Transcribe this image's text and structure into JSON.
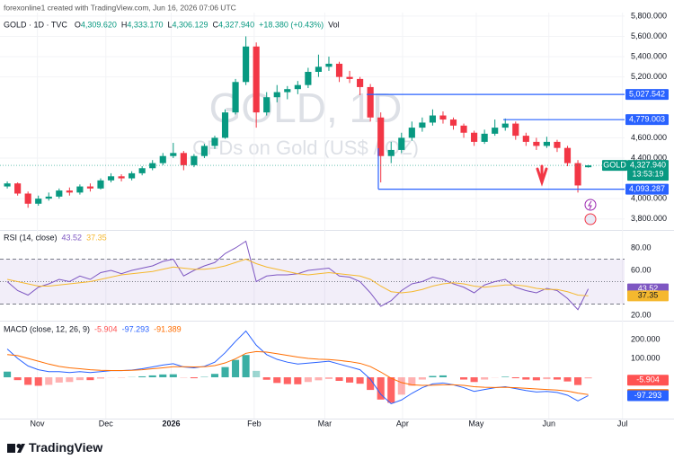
{
  "header": {
    "credit": "forexonline1 created with TradingView.com, Jun 16, 2026 07:06 UTC",
    "symbol": "GOLD · 1D · TVC",
    "quote": [
      {
        "key": "O",
        "label": "4,309.620"
      },
      {
        "key": "H",
        "label": "4,333.170"
      },
      {
        "key": "L",
        "label": "4,306.129"
      },
      {
        "key": "C",
        "label": "4,327.940"
      }
    ],
    "change": "+18.380 (+0.43%)",
    "volume": "Vol"
  },
  "chart_data": {
    "type": "candlestick",
    "title": "GOLD, 1D",
    "subtitle": "CFDs on Gold (US$ / OZ)",
    "up_color": "#089981",
    "down_color": "#f23645",
    "xlim": [
      -0.7,
      59.5
    ],
    "xticks": [
      {
        "value": 2.9,
        "label": "Nov"
      },
      {
        "value": 9.5,
        "label": "Dec"
      },
      {
        "value": 15.8,
        "label": "2026"
      },
      {
        "value": 23.8,
        "label": "Feb"
      },
      {
        "value": 30.6,
        "label": "Mar"
      },
      {
        "value": 38.1,
        "label": "Apr"
      },
      {
        "value": 45.2,
        "label": "May"
      },
      {
        "value": 52.2,
        "label": "Jun"
      },
      {
        "value": 59.3,
        "label": "Jul"
      }
    ],
    "ylim": [
      3700,
      5870
    ],
    "yticks": [
      {
        "value": 5800,
        "label": "5,800.000"
      },
      {
        "value": 5600,
        "label": "5,600.000"
      },
      {
        "value": 5400,
        "label": "5,400.000"
      },
      {
        "value": 5200,
        "label": "5,200.000"
      },
      {
        "value": 4600,
        "label": "4,600.000"
      },
      {
        "value": 4400,
        "label": "4,400.000"
      },
      {
        "value": 4000,
        "label": "4,000.000"
      },
      {
        "value": 3800,
        "label": "3,800.000"
      }
    ],
    "candles": [
      [
        4120,
        4170,
        4100,
        4150
      ],
      [
        4150,
        4160,
        4030,
        4050
      ],
      [
        4050,
        4070,
        3910,
        3950
      ],
      [
        3950,
        4030,
        3930,
        4000
      ],
      [
        4000,
        4060,
        3980,
        4020
      ],
      [
        4020,
        4100,
        4000,
        4080
      ],
      [
        4080,
        4110,
        4030,
        4060
      ],
      [
        4060,
        4140,
        4040,
        4120
      ],
      [
        4120,
        4150,
        4070,
        4100
      ],
      [
        4100,
        4200,
        4090,
        4180
      ],
      [
        4180,
        4250,
        4160,
        4220
      ],
      [
        4220,
        4240,
        4170,
        4200
      ],
      [
        4200,
        4270,
        4180,
        4250
      ],
      [
        4250,
        4320,
        4230,
        4300
      ],
      [
        4300,
        4380,
        4280,
        4350
      ],
      [
        4350,
        4450,
        4330,
        4420
      ],
      [
        4420,
        4550,
        4400,
        4450
      ],
      [
        4450,
        4470,
        4280,
        4330
      ],
      [
        4330,
        4440,
        4310,
        4420
      ],
      [
        4420,
        4540,
        4400,
        4520
      ],
      [
        4520,
        4620,
        4490,
        4600
      ],
      [
        4600,
        4880,
        4590,
        4850
      ],
      [
        4850,
        5180,
        4830,
        5150
      ],
      [
        5150,
        5600,
        5120,
        5500
      ],
      [
        5500,
        5540,
        4700,
        4850
      ],
      [
        4850,
        5050,
        4820,
        5000
      ],
      [
        5000,
        5120,
        4950,
        5050
      ],
      [
        5050,
        5110,
        4980,
        5080
      ],
      [
        5080,
        5160,
        5030,
        5120
      ],
      [
        5120,
        5290,
        5090,
        5250
      ],
      [
        5250,
        5420,
        5200,
        5300
      ],
      [
        5300,
        5400,
        5260,
        5330
      ],
      [
        5330,
        5350,
        5150,
        5200
      ],
      [
        5200,
        5260,
        5140,
        5180
      ],
      [
        5180,
        5200,
        5020,
        5100
      ],
      [
        5100,
        5130,
        4760,
        4800
      ],
      [
        4800,
        4850,
        4160,
        4420
      ],
      [
        4420,
        4560,
        4350,
        4480
      ],
      [
        4480,
        4650,
        4450,
        4600
      ],
      [
        4600,
        4760,
        4570,
        4700
      ],
      [
        4700,
        4800,
        4660,
        4750
      ],
      [
        4750,
        4880,
        4720,
        4820
      ],
      [
        4820,
        4860,
        4740,
        4780
      ],
      [
        4780,
        4800,
        4680,
        4720
      ],
      [
        4720,
        4740,
        4600,
        4650
      ],
      [
        4650,
        4670,
        4520,
        4560
      ],
      [
        4560,
        4680,
        4540,
        4640
      ],
      [
        4640,
        4780,
        4620,
        4700
      ],
      [
        4700,
        4790,
        4670,
        4740
      ],
      [
        4740,
        4760,
        4580,
        4620
      ],
      [
        4620,
        4650,
        4520,
        4560
      ],
      [
        4560,
        4600,
        4480,
        4520
      ],
      [
        4520,
        4610,
        4500,
        4560
      ],
      [
        4560,
        4580,
        4460,
        4500
      ],
      [
        4500,
        4520,
        4320,
        4350
      ],
      [
        4350,
        4380,
        4060,
        4130
      ],
      [
        4309.62,
        4333.17,
        4306.129,
        4327.94
      ]
    ],
    "levels": [
      {
        "value": 5027.542,
        "label": "5,027.542",
        "color": "#2962ff"
      },
      {
        "value": 4779.003,
        "label": "4,779.003",
        "color": "#2962ff"
      },
      {
        "value": 4093.287,
        "label": "4,093.287",
        "color": "#2962ff"
      }
    ],
    "last_price": {
      "name": "GOLD",
      "value": 4327.94,
      "label": "4,327.940",
      "countdown": "13:53:19",
      "color": "#089981"
    },
    "rsi": {
      "title": "RSI (14, close)",
      "ylim": [
        15.2,
        94.4
      ],
      "yticks": [
        {
          "value": 80,
          "label": "80.00"
        },
        {
          "value": 60,
          "label": "60.00"
        },
        {
          "value": 20,
          "label": "20.00"
        }
      ],
      "bands": [
        70,
        50,
        30
      ],
      "series": [
        {
          "name": "RSI",
          "color": "#7e57c2",
          "values": [
            50,
            42,
            38,
            45,
            48,
            52,
            50,
            55,
            52,
            58,
            60,
            57,
            60,
            62,
            64,
            68,
            70,
            55,
            60,
            64,
            67,
            75,
            80,
            86,
            50,
            55,
            56,
            56,
            57,
            60,
            61,
            62,
            55,
            54,
            50,
            40,
            28,
            33,
            42,
            48,
            50,
            54,
            52,
            48,
            45,
            40,
            47,
            50,
            52,
            45,
            42,
            40,
            44,
            42,
            35,
            25,
            43.52
          ]
        },
        {
          "name": "RSI-based MA",
          "color": "#f5b82e",
          "values": [
            52,
            50,
            48,
            46,
            46,
            47,
            48,
            49,
            50,
            52,
            54,
            56,
            57,
            58,
            59,
            61,
            63,
            62,
            61,
            61,
            62,
            64,
            67,
            70,
            66,
            63,
            61,
            59,
            57,
            56,
            57,
            58,
            57,
            56,
            55,
            52,
            46,
            41,
            40,
            41,
            43,
            46,
            48,
            49,
            48,
            46,
            45,
            46,
            47,
            47,
            46,
            44,
            43,
            43,
            41,
            38,
            37.35
          ]
        }
      ]
    },
    "macd": {
      "title": "MACD (close, 12, 26, 9)",
      "ylim": [
        -214,
        295
      ],
      "yticks": [
        {
          "value": 200,
          "label": "200.000"
        },
        {
          "value": 100,
          "label": "100.000"
        }
      ],
      "histogram": {
        "name": "Histogram",
        "up_color": "#26a69a",
        "down_color": "#ff5252",
        "values": [
          30,
          -15,
          -40,
          -45,
          -40,
          -28,
          -25,
          -15,
          -15,
          -7,
          -1,
          -1,
          1,
          5,
          10,
          15,
          16,
          -1,
          -5,
          2,
          18,
          54,
          92,
          118,
          34,
          -13,
          -30,
          -36,
          -37,
          -25,
          -16,
          -9,
          -19,
          -28,
          -34,
          -67,
          -118,
          -135,
          -92,
          -45,
          -12,
          7,
          10,
          0,
          -12,
          -25,
          -12,
          -1,
          3,
          -5,
          -12,
          -16,
          -10,
          -12,
          -22,
          -41,
          -5.904
        ]
      },
      "series": [
        {
          "name": "MACD",
          "color": "#2962ff",
          "values": [
            150,
            100,
            60,
            40,
            30,
            30,
            25,
            30,
            25,
            30,
            35,
            35,
            38,
            45,
            55,
            65,
            72,
            55,
            50,
            58,
            80,
            130,
            190,
            245,
            170,
            120,
            95,
            80,
            70,
            75,
            80,
            85,
            70,
            55,
            40,
            -10,
            -90,
            -140,
            -120,
            -85,
            -55,
            -35,
            -30,
            -40,
            -55,
            -75,
            -65,
            -55,
            -50,
            -60,
            -70,
            -78,
            -75,
            -80,
            -95,
            -125,
            -97.293
          ]
        },
        {
          "name": "Signal",
          "color": "#ff6d00",
          "values": [
            120,
            115,
            100,
            85,
            70,
            58,
            50,
            45,
            40,
            37,
            36,
            36,
            37,
            40,
            45,
            50,
            56,
            56,
            55,
            56,
            62,
            76,
            98,
            127,
            136,
            133,
            125,
            116,
            107,
            100,
            96,
            94,
            89,
            83,
            74,
            57,
            28,
            -5,
            -28,
            -40,
            -43,
            -42,
            -40,
            -40,
            -43,
            -50,
            -53,
            -54,
            -53,
            -55,
            -58,
            -62,
            -65,
            -68,
            -73,
            -84,
            -91.389
          ]
        }
      ]
    }
  },
  "footer": {
    "brand": "TradingView"
  }
}
